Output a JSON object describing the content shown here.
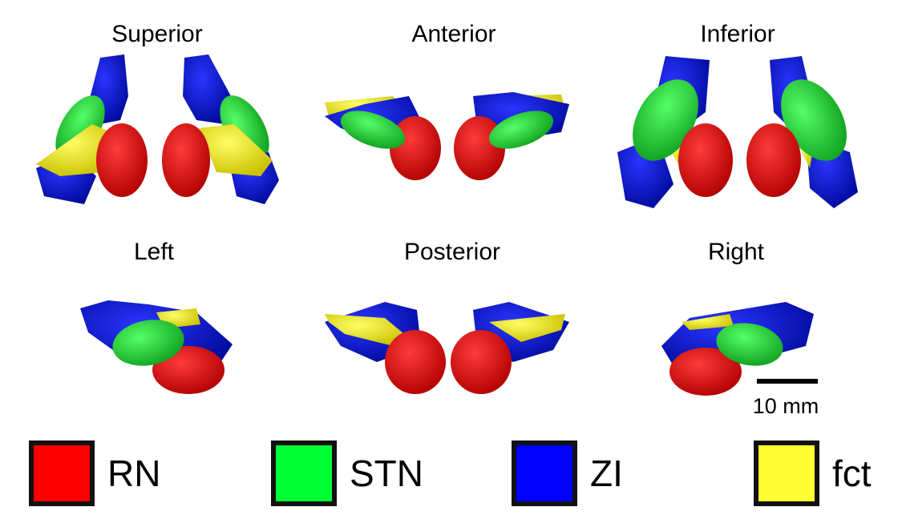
{
  "colors": {
    "RN": "#e00000",
    "STN": "#22dd33",
    "ZI": "#0a16d6",
    "fct": "#f2ee1a"
  },
  "views": [
    {
      "name": "superior",
      "label": "Superior"
    },
    {
      "name": "anterior",
      "label": "Anterior"
    },
    {
      "name": "inferior",
      "label": "Inferior"
    },
    {
      "name": "left",
      "label": "Left"
    },
    {
      "name": "posterior",
      "label": "Posterior"
    },
    {
      "name": "right",
      "label": "Right"
    }
  ],
  "scale_bar": {
    "label": "10 mm"
  },
  "legend": [
    {
      "key": "RN",
      "label": "RN",
      "color": "#ff0000"
    },
    {
      "key": "STN",
      "label": "STN",
      "color": "#00ff33"
    },
    {
      "key": "ZI",
      "label": "ZI",
      "color": "#0000ff"
    },
    {
      "key": "fct",
      "label": "fct",
      "color": "#ffff33"
    }
  ]
}
